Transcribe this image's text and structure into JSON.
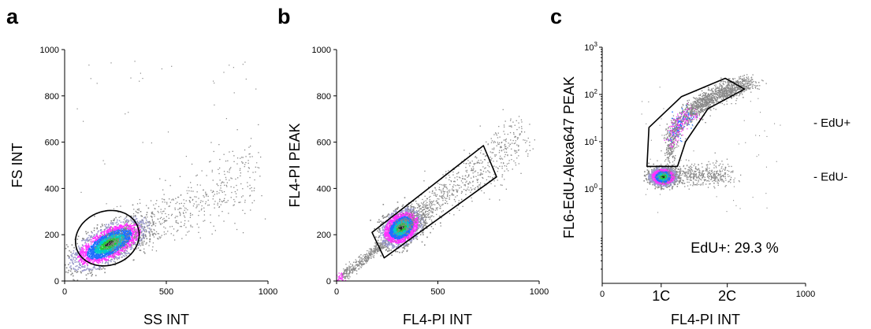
{
  "figure": {
    "panel_letters": [
      "a",
      "b",
      "c"
    ]
  },
  "chart_data": [
    {
      "type": "scatter",
      "panel": "a",
      "title": "",
      "xlabel": "SS INT",
      "ylabel": "FS INT",
      "xlim": [
        0,
        1000
      ],
      "ylim": [
        0,
        1000
      ],
      "x_ticks": [
        0,
        500,
        1000
      ],
      "x_tick_labels": [
        "0",
        "500",
        "1000"
      ],
      "y_ticks": [
        0,
        200,
        400,
        600,
        800,
        1000
      ],
      "y_tick_labels": [
        "0",
        "200",
        "400",
        "600",
        "800",
        "1000"
      ],
      "y_scale": "linear",
      "density": {
        "center": [
          220,
          160
        ],
        "spread": [
          80,
          45
        ],
        "tail_to": [
          950,
          470
        ]
      },
      "gate": {
        "shape": "ellipse",
        "center": [
          210,
          185
        ],
        "radii": [
          155,
          120
        ],
        "rotation_deg": -5
      },
      "colormap": [
        "#888888",
        "#9999cc",
        "#ff33ff",
        "#1f6fff",
        "#00c8c8",
        "#22cc33",
        "#222222"
      ]
    },
    {
      "type": "scatter",
      "panel": "b",
      "title": "",
      "xlabel": "FL4-PI INT",
      "ylabel": "FL4-PI PEAK",
      "xlim": [
        0,
        1000
      ],
      "ylim": [
        0,
        1000
      ],
      "x_ticks": [
        0,
        500,
        1000
      ],
      "x_tick_labels": [
        "0",
        "500",
        "1000"
      ],
      "y_ticks": [
        0,
        200,
        400,
        600,
        800,
        1000
      ],
      "y_tick_labels": [
        "0",
        "200",
        "400",
        "600",
        "800",
        "1000"
      ],
      "y_scale": "linear",
      "density": {
        "center": [
          320,
          230
        ],
        "spread": [
          45,
          35
        ],
        "tail_to": [
          920,
          620
        ]
      },
      "gate": {
        "shape": "polygon",
        "points": [
          [
            175,
            210
          ],
          [
            725,
            585
          ],
          [
            790,
            450
          ],
          [
            235,
            100
          ]
        ]
      },
      "colormap": [
        "#888888",
        "#9999cc",
        "#ff33ff",
        "#1f6fff",
        "#00c8c8",
        "#22cc33",
        "#222222"
      ]
    },
    {
      "type": "scatter",
      "panel": "c",
      "title": "",
      "xlabel": "FL4-PI INT",
      "ylabel": "FL6-EdU-Alexa647 PEAK",
      "xlim": [
        0,
        1000
      ],
      "ylim": [
        0.01,
        1000
      ],
      "x_ticks": [
        0,
        1000
      ],
      "x_tick_labels": [
        "0",
        "1000"
      ],
      "x_category_ticks": [
        {
          "x": 290,
          "label": "1C"
        },
        {
          "x": 615,
          "label": "2C"
        }
      ],
      "y_ticks": [
        1,
        10,
        100,
        1000
      ],
      "y_tick_labels": [
        "10^0",
        "10^1",
        "10^2",
        "10^3"
      ],
      "y_scale": "log",
      "density": {
        "center": [
          300,
          1.8
        ],
        "arc_to": [
          700,
          150
        ],
        "tail_to": [
          620,
          2
        ]
      },
      "gate": {
        "shape": "polygon",
        "points": [
          [
            230,
            20
          ],
          [
            390,
            90
          ],
          [
            605,
            220
          ],
          [
            700,
            130
          ],
          [
            520,
            50
          ],
          [
            410,
            10
          ],
          [
            370,
            3
          ],
          [
            220,
            3
          ]
        ]
      },
      "annotation": "EdU+: 29.3 %",
      "side_labels": [
        {
          "label": "- EdU+",
          "y": 25
        },
        {
          "label": "- EdU-",
          "y": 1.8
        }
      ],
      "colormap": [
        "#888888",
        "#9999cc",
        "#ff33ff",
        "#1f6fff",
        "#00c8c8",
        "#22cc33",
        "#222222"
      ]
    }
  ]
}
